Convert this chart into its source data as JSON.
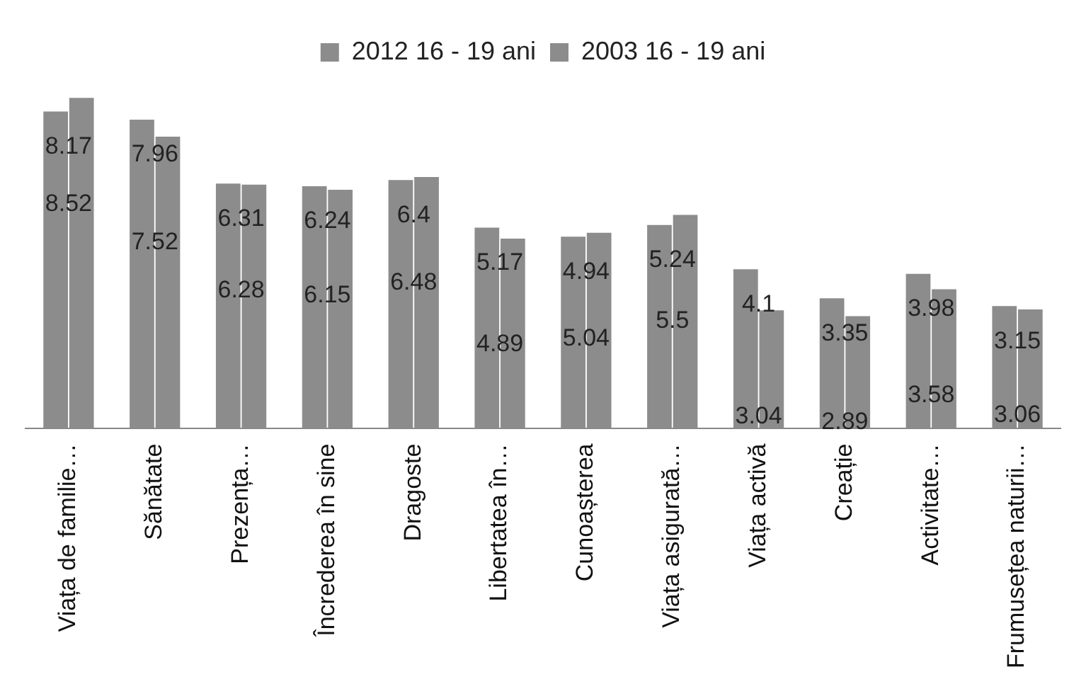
{
  "chart_data": {
    "type": "bar",
    "categories": [
      "Viața de familie…",
      "Sănătate",
      "Prezența…",
      "Încrederea în sine",
      "Dragoste",
      "Libertatea în…",
      "Cunoașterea",
      "Viața asigurată…",
      "Viața activă",
      "Creație",
      "Activitate…",
      "Frumusețea naturii…"
    ],
    "series": [
      {
        "name": "2012 16 - 19 ani",
        "color": "#8c8c8c",
        "values": [
          8.17,
          7.96,
          6.31,
          6.24,
          6.4,
          5.17,
          4.94,
          5.24,
          4.1,
          3.35,
          3.98,
          3.15
        ]
      },
      {
        "name": "2003 16 - 19 ani",
        "color": "#8c8c8c",
        "values": [
          8.52,
          7.52,
          6.28,
          6.15,
          6.48,
          4.89,
          5.04,
          5.5,
          3.04,
          2.89,
          3.58,
          3.06
        ]
      }
    ],
    "data_labels": true,
    "legend": "top",
    "grid": false
  }
}
